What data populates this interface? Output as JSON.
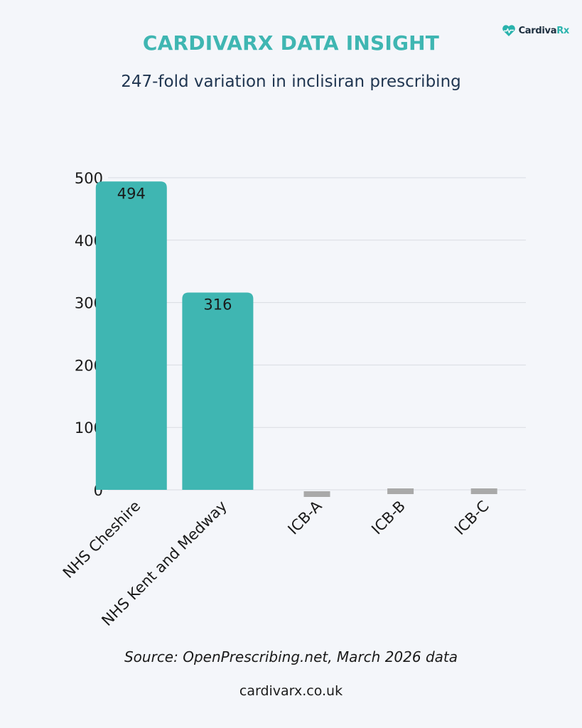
{
  "brand": {
    "logo_icon": "heart-pulse-icon",
    "logo_text_main": "Cardiva",
    "logo_text_accent": "Rx",
    "accent_color": "#3fb6b2"
  },
  "header": {
    "title": "CARDIVARX DATA INSIGHT",
    "subtitle": "247-fold variation in inclisiran prescribing"
  },
  "footer": {
    "source": "Source: OpenPrescribing.net, March 2026 data",
    "website": "cardivarx.co.uk"
  },
  "chart_data": {
    "type": "bar",
    "categories": [
      "NHS Cheshire",
      "NHS Kent and Medway",
      "ICB-A",
      "ICB-B",
      "ICB-C"
    ],
    "values": [
      494,
      316,
      2,
      2,
      2
    ],
    "data_labels": [
      "494",
      "316",
      "",
      "",
      ""
    ],
    "bar_colors": [
      "#3fb6b2",
      "#3fb6b2",
      "#a9a9a9",
      "#a9a9a9",
      "#a9a9a9"
    ],
    "ylim": [
      0,
      500
    ],
    "yticks": [
      0,
      100,
      200,
      300,
      400,
      500
    ],
    "ytick_labels": [
      "0",
      "100",
      "200",
      "300",
      "400",
      "500"
    ],
    "grid": true,
    "gridline_color": "#d9dce2",
    "title": "",
    "xlabel": "",
    "ylabel": ""
  }
}
